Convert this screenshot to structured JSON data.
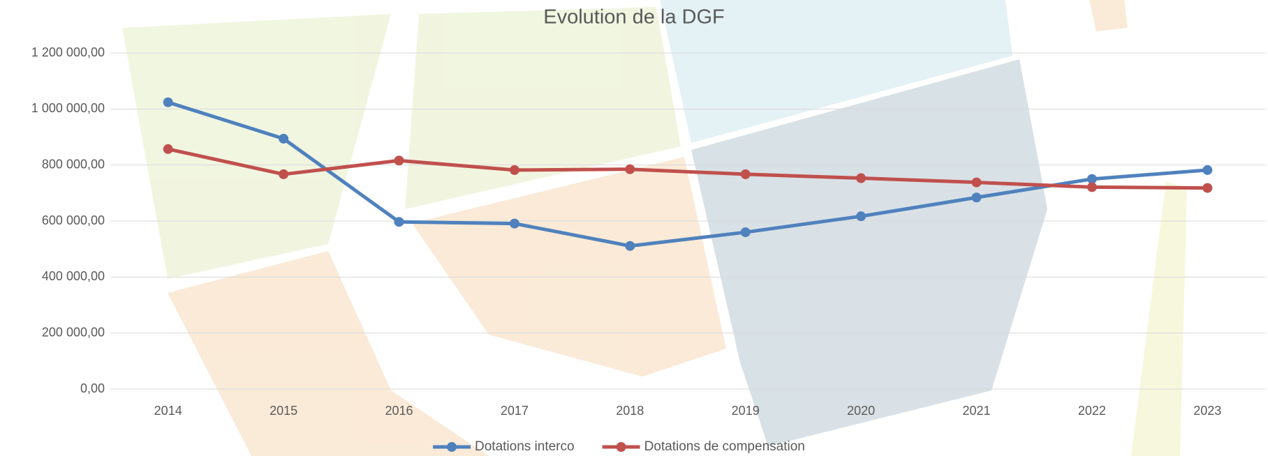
{
  "chart_data": {
    "type": "line",
    "title": "Evolution de la DGF",
    "categories": [
      "2014",
      "2015",
      "2016",
      "2017",
      "2018",
      "2019",
      "2020",
      "2021",
      "2022",
      "2023"
    ],
    "series": [
      {
        "name": "Dotations interco",
        "color": "#4f81bd",
        "values": [
          1024000,
          894000,
          597000,
          591000,
          511000,
          560000,
          617000,
          684000,
          750000,
          782000
        ]
      },
      {
        "name": "Dotations de compensation",
        "color": "#c0504d",
        "values": [
          857000,
          767000,
          816000,
          782000,
          785000,
          767000,
          753000,
          738000,
          721000,
          718000
        ]
      }
    ],
    "ylim": [
      0,
      1200000
    ],
    "yticks": [
      {
        "value": 0,
        "label": "0,00"
      },
      {
        "value": 200000,
        "label": "200 000,00"
      },
      {
        "value": 400000,
        "label": "400 000,00"
      },
      {
        "value": 600000,
        "label": "600 000,00"
      },
      {
        "value": 800000,
        "label": "800 000,00"
      },
      {
        "value": 1000000,
        "label": "1 000 000,00"
      },
      {
        "value": 1200000,
        "label": "1 200 000,00"
      }
    ],
    "grid": true,
    "legend": "bottom"
  }
}
